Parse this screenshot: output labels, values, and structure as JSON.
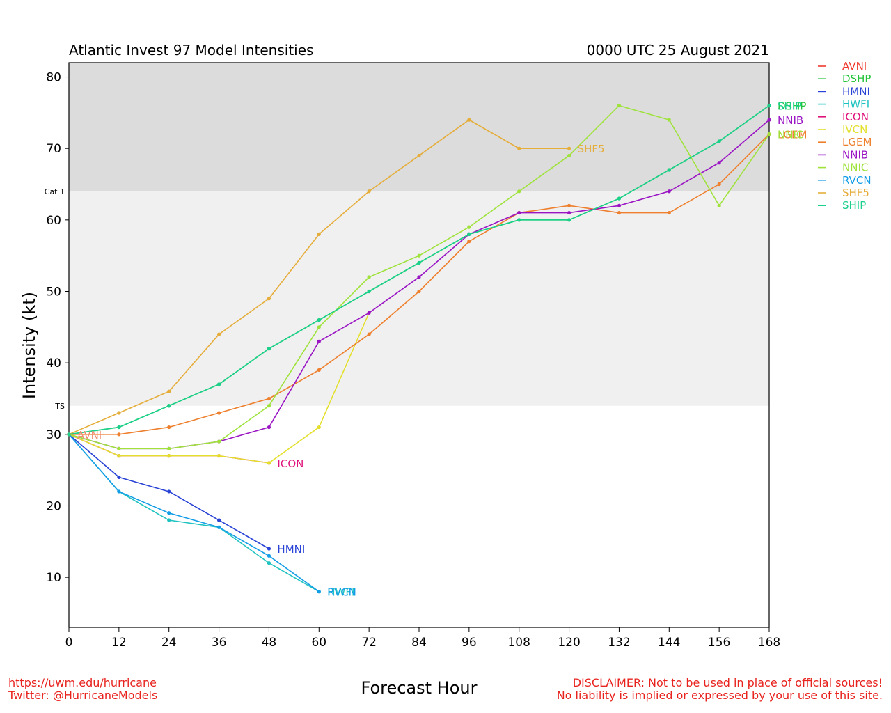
{
  "chart_data": {
    "type": "line",
    "title": "Atlantic Invest 97 Model Intensities",
    "date": "0000 UTC 25 August 2021",
    "xlabel": "Forecast Hour",
    "ylabel": "Intensity (kt)",
    "xlim": [
      0,
      168
    ],
    "ylim": [
      3,
      82
    ],
    "xticks": [
      0,
      12,
      24,
      36,
      48,
      60,
      72,
      84,
      96,
      108,
      120,
      132,
      144,
      156,
      168
    ],
    "yticks": [
      10,
      20,
      30,
      40,
      50,
      60,
      70,
      80
    ],
    "bands": [
      {
        "label": "TS",
        "from": 34,
        "to": 64,
        "color": "#f0f0f0"
      },
      {
        "label": "Cat 1",
        "from": 64,
        "to": 82,
        "color": "#dcdcdc"
      }
    ],
    "legend_position": "right",
    "series": [
      {
        "name": "AVNI",
        "color": "#f03a2e",
        "x": [
          0
        ],
        "y": [
          30
        ]
      },
      {
        "name": "DSHP",
        "color": "#22c43a",
        "x": [
          0,
          12,
          24,
          36,
          48,
          60,
          72,
          84,
          96,
          108,
          120,
          132,
          144,
          156,
          168
        ],
        "y": [
          30,
          31,
          34,
          37,
          42,
          46,
          50,
          54,
          58,
          60,
          60,
          63,
          67,
          71,
          76
        ]
      },
      {
        "name": "HMNI",
        "color": "#2943d6",
        "x": [
          0,
          12,
          24,
          36,
          48
        ],
        "y": [
          30,
          24,
          22,
          18,
          14
        ]
      },
      {
        "name": "HWFI",
        "color": "#1dc3c0",
        "x": [
          0,
          12,
          24,
          36,
          48,
          60
        ],
        "y": [
          30,
          22,
          18,
          17,
          12,
          8
        ]
      },
      {
        "name": "ICON",
        "color": "#e0137b",
        "x": [
          0,
          12,
          24,
          36,
          48
        ],
        "y": [
          30,
          27,
          27,
          27,
          26
        ]
      },
      {
        "name": "IVCN",
        "color": "#e3e02c",
        "x": [
          0,
          12,
          24,
          36,
          48,
          60,
          72
        ],
        "y": [
          30,
          27,
          27,
          27,
          26,
          31,
          47
        ]
      },
      {
        "name": "LGEM",
        "color": "#ee7f2d",
        "x": [
          0,
          12,
          24,
          36,
          48,
          60,
          72,
          84,
          96,
          108,
          120,
          132,
          144,
          156,
          168
        ],
        "y": [
          30,
          30,
          31,
          33,
          35,
          39,
          44,
          50,
          57,
          61,
          62,
          61,
          61,
          65,
          72
        ]
      },
      {
        "name": "NNIB",
        "color": "#9a14c4",
        "x": [
          0,
          12,
          24,
          36,
          48,
          60,
          72,
          84,
          96,
          108,
          120,
          132,
          144,
          156,
          168
        ],
        "y": [
          30,
          28,
          28,
          29,
          31,
          43,
          47,
          52,
          58,
          61,
          61,
          62,
          64,
          68,
          74
        ]
      },
      {
        "name": "NNIC",
        "color": "#9ee23a",
        "x": [
          0,
          12,
          24,
          36,
          48,
          60,
          72,
          84,
          96,
          108,
          120,
          132,
          144,
          156,
          168
        ],
        "y": [
          30,
          28,
          28,
          29,
          34,
          45,
          52,
          55,
          59,
          64,
          69,
          76,
          74,
          62,
          72
        ]
      },
      {
        "name": "RVCN",
        "color": "#139de6",
        "x": [
          0,
          12,
          24,
          36,
          48,
          60
        ],
        "y": [
          30,
          22,
          19,
          17,
          13,
          8
        ]
      },
      {
        "name": "SHF5",
        "color": "#e5ad3a",
        "x": [
          0,
          12,
          24,
          36,
          48,
          60,
          72,
          84,
          96,
          108,
          120
        ],
        "y": [
          30,
          33,
          36,
          44,
          49,
          58,
          64,
          69,
          74,
          70,
          70
        ]
      },
      {
        "name": "SHIP",
        "color": "#1ad08a",
        "x": [
          0,
          12,
          24,
          36,
          48,
          60,
          72,
          84,
          96,
          108,
          120,
          132,
          144,
          156,
          168
        ],
        "y": [
          30,
          31,
          34,
          37,
          42,
          46,
          50,
          54,
          58,
          60,
          60,
          63,
          67,
          71,
          76
        ]
      }
    ],
    "end_labels": [
      {
        "name": "AVNI",
        "x": 0,
        "y": 30,
        "color": "#f08a6e"
      },
      {
        "name": "ICON",
        "x": 48,
        "y": 26,
        "color": "#e0137b"
      },
      {
        "name": "HMNI",
        "x": 48,
        "y": 14,
        "color": "#2943d6"
      },
      {
        "name": "HWFI",
        "x": 60,
        "y": 8,
        "color": "#1dc3c0"
      },
      {
        "name": "RVCN",
        "x": 60,
        "y": 8,
        "color": "#139de6"
      },
      {
        "name": "SHF5",
        "x": 120,
        "y": 70,
        "color": "#e5ad3a"
      },
      {
        "name": "DSHP",
        "x": 168,
        "y": 76,
        "color": "#22c43a"
      },
      {
        "name": "SHIP",
        "x": 168,
        "y": 76,
        "color": "#1ad08a"
      },
      {
        "name": "NNIB",
        "x": 168,
        "y": 74,
        "color": "#9a14c4"
      },
      {
        "name": "LGEM",
        "x": 168,
        "y": 72,
        "color": "#ee7f2d"
      },
      {
        "name": "NNIC",
        "x": 168,
        "y": 72,
        "color": "#9ee23a"
      }
    ]
  },
  "footer": {
    "url": "https://uwm.edu/hurricane",
    "twitter": "Twitter: @HurricaneModels",
    "disclaimer_1": "DISCLAIMER: Not to be used in place of official sources!",
    "disclaimer_2": "No liability is implied or expressed by your use of this site."
  }
}
